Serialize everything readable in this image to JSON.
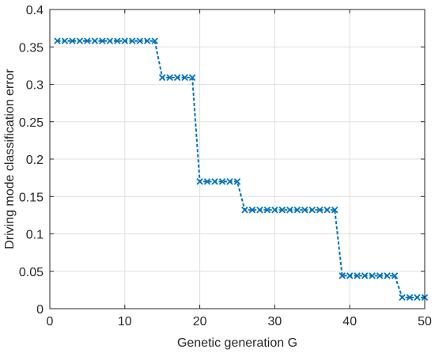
{
  "chart_data": {
    "type": "line",
    "title": "",
    "xlabel": "Genetic generation G",
    "ylabel": "Driving mode classification error",
    "xlim": [
      0,
      50
    ],
    "ylim": [
      0,
      0.4
    ],
    "xticks": [
      0,
      10,
      20,
      30,
      40,
      50
    ],
    "xtick_labels": [
      "0",
      "10",
      "20",
      "30",
      "40",
      "50"
    ],
    "yticks": [
      0,
      0.05,
      0.1,
      0.15,
      0.2,
      0.25,
      0.3,
      0.35,
      0.4
    ],
    "ytick_labels": [
      "0",
      "0.05",
      "0.1",
      "0.15",
      "0.2",
      "0.25",
      "0.3",
      "0.35",
      "0.4"
    ],
    "grid": true,
    "legend": "none",
    "series": [
      {
        "color": "#0072BD",
        "line_style": "dashed",
        "marker": "x",
        "x": [
          1,
          2,
          3,
          4,
          5,
          6,
          7,
          8,
          9,
          10,
          11,
          12,
          13,
          14,
          15,
          16,
          17,
          18,
          19,
          20,
          21,
          22,
          23,
          24,
          25,
          26,
          27,
          28,
          29,
          30,
          31,
          32,
          33,
          34,
          35,
          36,
          37,
          38,
          39,
          40,
          41,
          42,
          43,
          44,
          45,
          46,
          47,
          48,
          49,
          50
        ],
        "y": [
          0.358,
          0.358,
          0.358,
          0.358,
          0.358,
          0.358,
          0.358,
          0.358,
          0.358,
          0.358,
          0.358,
          0.358,
          0.358,
          0.358,
          0.309,
          0.309,
          0.309,
          0.309,
          0.309,
          0.17,
          0.17,
          0.17,
          0.17,
          0.17,
          0.17,
          0.132,
          0.132,
          0.132,
          0.132,
          0.132,
          0.132,
          0.132,
          0.132,
          0.132,
          0.132,
          0.132,
          0.132,
          0.132,
          0.044,
          0.044,
          0.044,
          0.044,
          0.044,
          0.044,
          0.044,
          0.044,
          0.015,
          0.015,
          0.015,
          0.015
        ]
      }
    ]
  }
}
